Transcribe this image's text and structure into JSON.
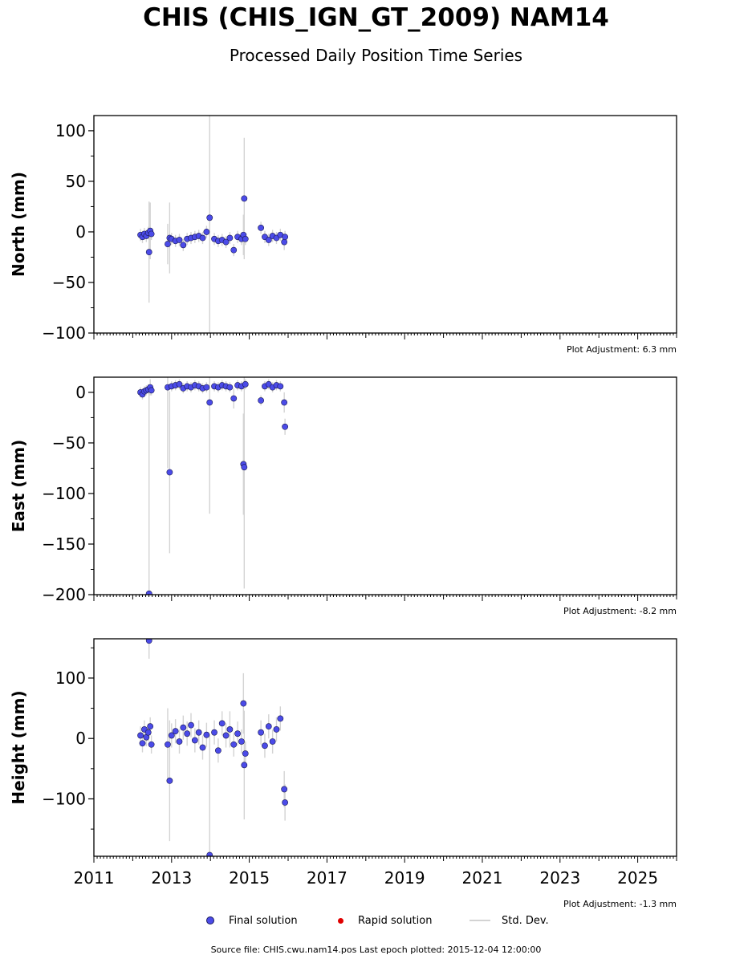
{
  "header": {
    "title": "CHIS (CHIS_IGN_GT_2009) NAM14",
    "subtitle": "Processed Daily Position Time Series"
  },
  "legend": {
    "final_label": "Final solution",
    "rapid_label": "Rapid solution",
    "std_label": "Std. Dev.",
    "final_color": "#4b4be8",
    "rapid_color": "#e00000",
    "std_color": "#d3d3d3"
  },
  "footer": {
    "text": "Source file: CHIS.cwu.nam14.pos  Last epoch plotted: 2015-12-04 12:00:00"
  },
  "chart_data": [
    {
      "type": "scatter",
      "ylabel": "North (mm)",
      "xlim": [
        2011,
        2026
      ],
      "ylim": [
        -100,
        115
      ],
      "yticks": [
        -100,
        -50,
        0,
        50,
        100
      ],
      "adjustment": "Plot Adjustment: 6.3 mm",
      "series": [
        {
          "x": [
            2012.2,
            2012.25,
            2012.3,
            2012.35,
            2012.4,
            2012.42,
            2012.45,
            2012.48,
            2012.9,
            2012.95,
            2013.0,
            2013.1,
            2013.2,
            2013.3,
            2013.4,
            2013.5,
            2013.6,
            2013.7,
            2013.8,
            2013.9,
            2013.98,
            2014.1,
            2014.2,
            2014.3,
            2014.4,
            2014.5,
            2014.6,
            2014.7,
            2014.8,
            2014.85,
            2014.87,
            2014.9,
            2015.3,
            2015.4,
            2015.5,
            2015.6,
            2015.7,
            2015.8,
            2015.9,
            2015.92
          ],
          "y": [
            -3,
            -5,
            -2,
            -4,
            -1,
            -20,
            1,
            -2,
            -12,
            -6,
            -7,
            -9,
            -8,
            -13,
            -7,
            -6,
            -5,
            -4,
            -6,
            0,
            14,
            -7,
            -9,
            -8,
            -10,
            -6,
            -18,
            -5,
            -7,
            -3,
            33,
            -7,
            4,
            -5,
            -8,
            -4,
            -6,
            -3,
            -10,
            -5
          ],
          "err": [
            6,
            6,
            6,
            6,
            6,
            50,
            28,
            6,
            20,
            35,
            6,
            6,
            6,
            6,
            6,
            6,
            6,
            6,
            6,
            6,
            130,
            6,
            6,
            6,
            6,
            6,
            6,
            6,
            6,
            20,
            60,
            6,
            6,
            6,
            6,
            6,
            6,
            6,
            8,
            6
          ]
        }
      ]
    },
    {
      "type": "scatter",
      "ylabel": "East (mm)",
      "xlim": [
        2011,
        2026
      ],
      "ylim": [
        -200,
        15
      ],
      "yticks": [
        -200,
        -150,
        -100,
        -50,
        0
      ],
      "adjustment": "Plot Adjustment: -8.2 mm",
      "series": [
        {
          "x": [
            2012.2,
            2012.25,
            2012.3,
            2012.35,
            2012.4,
            2012.42,
            2012.45,
            2012.48,
            2012.9,
            2012.95,
            2013.0,
            2013.1,
            2013.2,
            2013.3,
            2013.4,
            2013.5,
            2013.6,
            2013.7,
            2013.8,
            2013.9,
            2013.98,
            2014.1,
            2014.2,
            2014.3,
            2014.4,
            2014.5,
            2014.6,
            2014.7,
            2014.8,
            2014.85,
            2014.87,
            2014.9,
            2015.3,
            2015.4,
            2015.5,
            2015.6,
            2015.7,
            2015.8,
            2015.9,
            2015.92
          ],
          "y": [
            0,
            -2,
            1,
            2,
            3,
            -199,
            5,
            2,
            5,
            -79,
            6,
            7,
            8,
            4,
            6,
            5,
            7,
            6,
            4,
            5,
            -10,
            6,
            5,
            7,
            6,
            5,
            -6,
            7,
            6,
            -71,
            -74,
            8,
            -8,
            6,
            8,
            5,
            7,
            6,
            -10,
            -34
          ],
          "err": [
            5,
            5,
            5,
            5,
            5,
            200,
            8,
            5,
            80,
            80,
            5,
            5,
            5,
            5,
            5,
            5,
            5,
            5,
            5,
            5,
            110,
            5,
            5,
            5,
            5,
            5,
            10,
            5,
            5,
            50,
            120,
            5,
            5,
            5,
            5,
            5,
            5,
            5,
            10,
            8
          ]
        }
      ]
    },
    {
      "type": "scatter",
      "ylabel": "Height (mm)",
      "xlim": [
        2011,
        2026
      ],
      "ylim": [
        -195,
        165
      ],
      "yticks": [
        -100,
        0,
        100
      ],
      "xticks": [
        2011,
        2013,
        2015,
        2017,
        2019,
        2021,
        2023,
        2025
      ],
      "adjustment": "Plot Adjustment: -1.3 mm",
      "series": [
        {
          "x": [
            2012.2,
            2012.25,
            2012.3,
            2012.35,
            2012.4,
            2012.42,
            2012.45,
            2012.48,
            2012.9,
            2012.95,
            2013.0,
            2013.1,
            2013.2,
            2013.3,
            2013.4,
            2013.5,
            2013.6,
            2013.7,
            2013.8,
            2013.9,
            2013.98,
            2014.1,
            2014.2,
            2014.3,
            2014.4,
            2014.5,
            2014.6,
            2014.7,
            2014.8,
            2014.85,
            2014.87,
            2014.9,
            2015.3,
            2015.4,
            2015.5,
            2015.6,
            2015.7,
            2015.8,
            2015.9,
            2015.92
          ],
          "y": [
            5,
            -8,
            15,
            2,
            10,
            162,
            20,
            -10,
            -10,
            -70,
            5,
            12,
            -5,
            18,
            8,
            22,
            -3,
            10,
            -15,
            6,
            -193,
            10,
            -20,
            25,
            5,
            15,
            -10,
            8,
            -5,
            58,
            -44,
            -25,
            10,
            -12,
            20,
            -5,
            15,
            33,
            -84,
            -106
          ],
          "err": [
            15,
            15,
            15,
            15,
            15,
            30,
            15,
            15,
            60,
            100,
            20,
            20,
            20,
            20,
            20,
            20,
            20,
            20,
            20,
            20,
            200,
            20,
            20,
            20,
            20,
            30,
            20,
            20,
            20,
            50,
            90,
            20,
            20,
            20,
            20,
            20,
            20,
            20,
            30,
            30
          ]
        }
      ]
    }
  ]
}
